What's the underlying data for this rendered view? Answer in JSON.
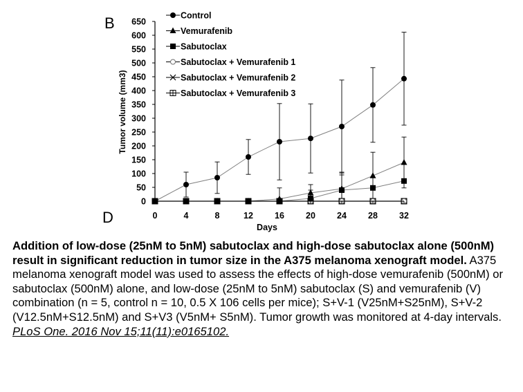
{
  "chart_data": {
    "type": "line",
    "panel_label": "B",
    "lower_panel_label": "D",
    "xlabel": "Days",
    "ylabel": "Tumor volume (mm3)",
    "x": [
      0,
      4,
      8,
      12,
      16,
      20,
      24,
      28,
      32
    ],
    "xticks": [
      "0",
      "4",
      "8",
      "12",
      "16",
      "20",
      "24",
      "28",
      "32"
    ],
    "yticks": [
      "0",
      "50",
      "100",
      "150",
      "200",
      "250",
      "300",
      "350",
      "400",
      "450",
      "500",
      "550",
      "600",
      "650"
    ],
    "xlim": [
      0,
      32
    ],
    "ylim": [
      0,
      650
    ],
    "grid": false,
    "legend_position": "top-left",
    "series": [
      {
        "name": "Control",
        "marker": "filled-circle",
        "values": [
          0,
          60,
          85,
          160,
          215,
          227,
          270,
          348,
          443
        ],
        "errors": [
          0,
          45,
          57,
          63,
          138,
          125,
          168,
          135,
          168
        ]
      },
      {
        "name": "Vemurafenib",
        "marker": "filled-triangle",
        "values": [
          0,
          0,
          0,
          0,
          8,
          30,
          45,
          92,
          140
        ],
        "errors": [
          0,
          0,
          0,
          0,
          40,
          30,
          60,
          85,
          92
        ]
      },
      {
        "name": "Sabutoclax",
        "marker": "filled-square",
        "values": [
          0,
          0,
          0,
          0,
          0,
          10,
          40,
          48,
          73
        ],
        "errors": [
          0,
          0,
          0,
          0,
          0,
          30,
          55,
          0,
          0
        ]
      },
      {
        "name": "Sabutoclax + Vemurafenib 1",
        "marker": "open-circle",
        "values": [
          0,
          0,
          0,
          0,
          0,
          0,
          0,
          0,
          0
        ],
        "errors": [
          0,
          0,
          0,
          0,
          0,
          0,
          0,
          0,
          0
        ]
      },
      {
        "name": "Sabutoclax + Vemurafenib 2",
        "marker": "x-cross",
        "values": [
          0,
          0,
          0,
          0,
          0,
          0,
          0,
          0,
          0
        ],
        "errors": [
          0,
          0,
          0,
          0,
          0,
          0,
          0,
          0,
          0
        ]
      },
      {
        "name": "Sabutoclax + Vemurafenib 3",
        "marker": "crossed-square",
        "values": [
          0,
          0,
          0,
          0,
          0,
          0,
          0,
          0,
          0
        ],
        "errors": [
          0,
          0,
          0,
          0,
          0,
          0,
          0,
          0,
          0
        ]
      }
    ],
    "colors": {
      "line": "#808080",
      "marker": "#000000",
      "axis": "#000000"
    }
  },
  "caption": {
    "bold": "Addition of low-dose (25nM to 5nM) sabutoclax and high-dose sabutoclax alone (500nM) result in significant reduction in tumor size in the A375 melanoma xenograft model.",
    "body": " A375 melanoma xenograft model was used to assess the effects of high-dose vemurafenib (500nM) or sabutoclax (500nM) alone, and low-dose (25nM to 5nM) sabutoclax (S) and vemurafenib (V) combination (n = 5, control n = 10, 0.5 X 106 cells per mice); S+V-1 (V25nM+S25nM), S+V-2 (V12.5nM+S12.5nM) and S+V3 (V5nM+ S5nM). Tumor growth was monitored at 4-day intervals. ",
    "citation": "PLoS One. 2016 Nov 15;11(11):e0165102."
  }
}
